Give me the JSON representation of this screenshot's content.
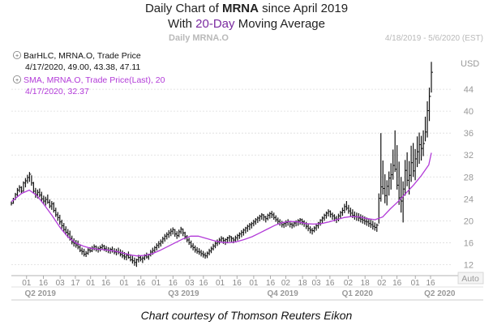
{
  "title": {
    "line1_pre": "Daily Chart of ",
    "line1_ticker": "MRNA",
    "line1_post": " since April 2019",
    "line2_pre": "With ",
    "line2_highlight": "20-Day",
    "line2_post": " Moving Average"
  },
  "header": {
    "chart_name": "Daily MRNA.O",
    "date_range": "4/18/2019 - 5/6/2020 (EST)"
  },
  "legend": {
    "row1": "BarHLC, MRNA.O, Trade Price",
    "row2": "4/17/2020, 49.00, 43.38, 47.11",
    "row3": "SMA, MRNA.O, Trade Price(Last),  20",
    "row4": "4/17/2020, 32.37"
  },
  "caption": "Chart courtesy of Thomson Reuters Eikon",
  "colors": {
    "bars": "#111111",
    "sma": "#b23ad8",
    "grid": "#dcdcdc",
    "highlight": "#7a2aa0"
  },
  "chart_data": {
    "type": "line",
    "currency": "USD",
    "axis_button": "Auto",
    "ylim": [
      10,
      52
    ],
    "y_ticks": [
      12,
      16,
      20,
      24,
      28,
      32,
      36,
      40,
      44
    ],
    "x_ticks": [
      {
        "label": "01",
        "t": 10
      },
      {
        "label": "16",
        "t": 21
      },
      {
        "label": "03",
        "t": 32
      },
      {
        "label": "17",
        "t": 42
      },
      {
        "label": "01",
        "t": 52
      },
      {
        "label": "16",
        "t": 62
      },
      {
        "label": "01",
        "t": 74
      },
      {
        "label": "16",
        "t": 85
      },
      {
        "label": "01",
        "t": 95
      },
      {
        "label": "16",
        "t": 106
      },
      {
        "label": "03",
        "t": 117
      },
      {
        "label": "16",
        "t": 126
      },
      {
        "label": "01",
        "t": 137
      },
      {
        "label": "16",
        "t": 148
      },
      {
        "label": "01",
        "t": 159
      },
      {
        "label": "16",
        "t": 170
      },
      {
        "label": "02",
        "t": 180
      },
      {
        "label": "18",
        "t": 191
      },
      {
        "label": "03",
        "t": 200
      },
      {
        "label": "16",
        "t": 209
      },
      {
        "label": "02",
        "t": 221
      },
      {
        "label": "18",
        "t": 232
      },
      {
        "label": "02",
        "t": 243
      },
      {
        "label": "16",
        "t": 253
      },
      {
        "label": "01",
        "t": 265
      },
      {
        "label": "16",
        "t": 275
      }
    ],
    "period_labels": [
      {
        "label": "Q2 2019",
        "t": 19
      },
      {
        "label": "Q3 2019",
        "t": 113
      },
      {
        "label": "Q4 2019",
        "t": 178
      },
      {
        "label": "Q1 2020",
        "t": 227
      },
      {
        "label": "Q2 2020",
        "t": 281
      }
    ],
    "bars": [
      [
        23.5,
        22.8,
        23.2
      ],
      [
        24.2,
        23.1,
        23.9
      ],
      [
        25.1,
        23.8,
        24.8
      ],
      [
        26.0,
        24.5,
        25.6
      ],
      [
        26.5,
        25.2,
        26.1
      ],
      [
        26.3,
        24.9,
        25.4
      ],
      [
        27.2,
        25.3,
        26.9
      ],
      [
        27.8,
        26.1,
        27.3
      ],
      [
        28.4,
        26.8,
        27.9
      ],
      [
        28.9,
        27.1,
        28.5
      ],
      [
        28.3,
        26.4,
        26.9
      ],
      [
        27.1,
        25.0,
        25.4
      ],
      [
        26.0,
        24.2,
        24.8
      ],
      [
        25.7,
        24.1,
        25.2
      ],
      [
        25.9,
        24.3,
        24.7
      ],
      [
        25.3,
        23.5,
        24.0
      ],
      [
        24.6,
        23.0,
        23.6
      ],
      [
        24.4,
        22.8,
        23.9
      ],
      [
        24.8,
        23.1,
        23.4
      ],
      [
        23.9,
        22.3,
        22.7
      ],
      [
        23.6,
        22.0,
        23.1
      ],
      [
        23.4,
        21.5,
        21.9
      ],
      [
        22.4,
        20.7,
        21.1
      ],
      [
        21.6,
        20.0,
        20.6
      ],
      [
        21.1,
        19.3,
        19.8
      ],
      [
        20.2,
        18.6,
        19.1
      ],
      [
        19.6,
        17.9,
        18.4
      ],
      [
        19.0,
        17.4,
        17.9
      ],
      [
        18.5,
        16.9,
        17.6
      ],
      [
        18.2,
        16.4,
        16.8
      ],
      [
        17.3,
        15.7,
        16.1
      ],
      [
        16.8,
        15.3,
        15.9
      ],
      [
        16.5,
        15.1,
        15.6
      ],
      [
        16.4,
        14.8,
        15.2
      ],
      [
        15.7,
        14.3,
        14.6
      ],
      [
        15.1,
        13.8,
        14.4
      ],
      [
        14.9,
        13.5,
        13.9
      ],
      [
        14.5,
        13.4,
        14.1
      ],
      [
        15.0,
        13.8,
        14.7
      ],
      [
        15.2,
        14.2,
        14.5
      ],
      [
        15.4,
        14.3,
        15.0
      ],
      [
        15.7,
        14.6,
        15.3
      ],
      [
        15.5,
        14.4,
        14.8
      ],
      [
        15.3,
        14.2,
        14.9
      ],
      [
        15.5,
        14.4,
        15.1
      ],
      [
        15.8,
        14.7,
        15.4
      ],
      [
        15.6,
        14.5,
        14.9
      ],
      [
        15.4,
        14.3,
        14.7
      ],
      [
        15.2,
        14.1,
        14.6
      ],
      [
        15.1,
        14.0,
        14.8
      ],
      [
        15.3,
        14.2,
        14.5
      ],
      [
        15.0,
        13.9,
        14.3
      ],
      [
        14.9,
        13.7,
        14.4
      ],
      [
        15.1,
        13.9,
        14.2
      ],
      [
        14.8,
        13.5,
        13.9
      ],
      [
        14.6,
        13.2,
        13.6
      ],
      [
        14.3,
        12.9,
        13.4
      ],
      [
        14.1,
        12.8,
        13.7
      ],
      [
        14.4,
        13.1,
        13.3
      ],
      [
        13.9,
        12.6,
        12.9
      ],
      [
        13.6,
        12.2,
        12.7
      ],
      [
        13.3,
        11.8,
        12.4
      ],
      [
        13.1,
        11.6,
        12.9
      ],
      [
        13.8,
        12.4,
        13.3
      ],
      [
        13.7,
        12.6,
        13.0
      ],
      [
        13.5,
        12.3,
        13.2
      ],
      [
        13.9,
        12.8,
        13.6
      ],
      [
        14.2,
        13.1,
        13.4
      ],
      [
        14.0,
        12.9,
        13.8
      ],
      [
        14.7,
        13.5,
        14.3
      ],
      [
        15.1,
        13.8,
        14.6
      ],
      [
        15.4,
        14.2,
        15.1
      ],
      [
        15.9,
        14.6,
        15.5
      ],
      [
        16.3,
        15.0,
        15.8
      ],
      [
        16.6,
        15.3,
        16.2
      ],
      [
        17.1,
        15.8,
        16.7
      ],
      [
        17.6,
        16.2,
        17.2
      ],
      [
        17.9,
        16.6,
        17.5
      ],
      [
        18.3,
        16.9,
        17.8
      ],
      [
        18.6,
        17.2,
        18.1
      ],
      [
        18.8,
        17.5,
        18.4
      ],
      [
        18.5,
        17.1,
        17.6
      ],
      [
        18.1,
        16.7,
        17.3
      ],
      [
        18.4,
        17.0,
        18.0
      ],
      [
        18.9,
        17.6,
        18.5
      ],
      [
        18.6,
        17.2,
        17.8
      ],
      [
        18.0,
        16.6,
        17.1
      ],
      [
        17.4,
        16.1,
        16.5
      ],
      [
        16.9,
        15.6,
        16.0
      ],
      [
        16.4,
        15.0,
        15.4
      ],
      [
        15.9,
        14.6,
        15.1
      ],
      [
        15.5,
        14.2,
        14.7
      ],
      [
        15.2,
        14.0,
        14.4
      ],
      [
        15.0,
        13.8,
        14.3
      ],
      [
        14.7,
        13.5,
        14.0
      ],
      [
        14.5,
        13.3,
        13.8
      ],
      [
        14.2,
        13.1,
        13.6
      ],
      [
        14.4,
        13.2,
        14.1
      ],
      [
        14.9,
        13.7,
        14.5
      ],
      [
        15.3,
        14.1,
        14.9
      ],
      [
        15.8,
        14.6,
        15.4
      ],
      [
        16.2,
        15.0,
        15.9
      ],
      [
        16.6,
        15.4,
        16.1
      ],
      [
        16.9,
        15.7,
        16.5
      ],
      [
        17.2,
        16.0,
        16.8
      ],
      [
        17.0,
        15.8,
        16.4
      ],
      [
        16.8,
        15.6,
        16.6
      ],
      [
        17.1,
        15.9,
        16.9
      ],
      [
        17.4,
        16.2,
        17.1
      ],
      [
        17.2,
        16.1,
        16.8
      ],
      [
        17.0,
        15.9,
        16.5
      ],
      [
        17.3,
        16.1,
        16.9
      ],
      [
        17.6,
        16.4,
        17.3
      ],
      [
        17.9,
        16.7,
        17.6
      ],
      [
        18.3,
        17.0,
        17.9
      ],
      [
        18.6,
        17.3,
        18.3
      ],
      [
        18.9,
        17.7,
        18.7
      ],
      [
        19.3,
        18.0,
        19.0
      ],
      [
        19.6,
        18.3,
        19.3
      ],
      [
        19.8,
        18.6,
        19.5
      ],
      [
        20.2,
        19.0,
        19.8
      ],
      [
        20.5,
        19.3,
        20.2
      ],
      [
        20.8,
        19.6,
        20.5
      ],
      [
        21.1,
        19.9,
        20.8
      ],
      [
        21.4,
        20.2,
        21.1
      ],
      [
        21.2,
        20.0,
        20.7
      ],
      [
        20.9,
        19.7,
        20.4
      ],
      [
        21.3,
        20.1,
        21.0
      ],
      [
        21.6,
        20.4,
        21.3
      ],
      [
        21.8,
        20.5,
        21.1
      ],
      [
        21.5,
        20.2,
        20.6
      ],
      [
        21.0,
        19.8,
        20.2
      ],
      [
        20.6,
        19.4,
        19.9
      ],
      [
        20.3,
        19.1,
        19.6
      ],
      [
        20.0,
        18.8,
        19.3
      ],
      [
        19.8,
        18.7,
        19.5
      ],
      [
        20.1,
        18.9,
        19.7
      ],
      [
        20.3,
        19.1,
        19.9
      ],
      [
        20.0,
        18.8,
        19.4
      ],
      [
        19.7,
        18.6,
        19.2
      ],
      [
        19.9,
        18.8,
        19.6
      ],
      [
        20.1,
        19.0,
        19.8
      ],
      [
        20.3,
        19.1,
        20.0
      ],
      [
        20.5,
        19.3,
        20.2
      ],
      [
        20.4,
        19.2,
        19.8
      ],
      [
        20.1,
        18.9,
        19.5
      ],
      [
        19.8,
        18.5,
        19.0
      ],
      [
        19.4,
        18.1,
        18.6
      ],
      [
        19.0,
        17.7,
        18.3
      ],
      [
        18.7,
        17.5,
        18.2
      ],
      [
        19.0,
        17.9,
        18.7
      ],
      [
        19.4,
        18.2,
        19.1
      ],
      [
        19.8,
        18.6,
        19.6
      ],
      [
        20.3,
        19.1,
        20.1
      ],
      [
        20.8,
        19.5,
        20.5
      ],
      [
        21.3,
        20.0,
        21.0
      ],
      [
        21.7,
        20.4,
        21.4
      ],
      [
        22.1,
        20.8,
        21.7
      ],
      [
        21.9,
        20.6,
        21.2
      ],
      [
        21.5,
        20.2,
        20.9
      ],
      [
        21.2,
        19.9,
        20.5
      ],
      [
        20.9,
        19.6,
        20.3
      ],
      [
        21.3,
        19.9,
        20.9
      ],
      [
        21.8,
        20.4,
        21.5
      ],
      [
        22.4,
        20.9,
        21.9
      ],
      [
        23.1,
        21.4,
        22.6
      ],
      [
        23.6,
        21.9,
        22.3
      ],
      [
        22.9,
        21.3,
        21.8
      ],
      [
        22.4,
        20.8,
        21.4
      ],
      [
        22.1,
        20.5,
        21.0
      ],
      [
        21.7,
        20.2,
        20.8
      ],
      [
        21.5,
        20.0,
        20.7
      ],
      [
        21.4,
        19.9,
        20.5
      ],
      [
        21.2,
        19.7,
        20.3
      ],
      [
        21.0,
        19.5,
        20.1
      ],
      [
        20.8,
        19.3,
        19.9
      ],
      [
        20.6,
        19.1,
        19.8
      ],
      [
        20.4,
        18.9,
        19.5
      ],
      [
        20.2,
        18.7,
        19.3
      ],
      [
        20.0,
        18.4,
        19.0
      ],
      [
        19.7,
        18.2,
        18.8
      ],
      [
        19.5,
        18.0,
        19.2
      ],
      [
        25.0,
        19.5,
        24.1
      ],
      [
        36.0,
        23.5,
        26.2
      ],
      [
        31.0,
        24.8,
        25.9
      ],
      [
        28.5,
        23.2,
        24.6
      ],
      [
        27.4,
        22.8,
        26.3
      ],
      [
        29.0,
        24.6,
        27.8
      ],
      [
        30.5,
        25.7,
        28.4
      ],
      [
        33.0,
        27.5,
        30.1
      ],
      [
        36.5,
        28.9,
        29.4
      ],
      [
        33.8,
        25.7,
        26.5
      ],
      [
        30.8,
        22.9,
        24.2
      ],
      [
        28.0,
        21.5,
        23.6
      ],
      [
        27.2,
        19.7,
        25.8
      ],
      [
        31.1,
        24.6,
        29.2
      ],
      [
        32.5,
        26.3,
        27.4
      ],
      [
        30.9,
        24.8,
        28.3
      ],
      [
        33.7,
        27.1,
        30.6
      ],
      [
        34.2,
        28.0,
        29.1
      ],
      [
        33.1,
        27.4,
        31.3
      ],
      [
        35.4,
        29.8,
        32.6
      ],
      [
        36.1,
        30.4,
        33.9
      ],
      [
        35.5,
        31.0,
        33.2
      ],
      [
        36.5,
        31.8,
        34.1
      ],
      [
        39.0,
        34.5,
        36.2
      ],
      [
        41.8,
        35.2,
        40.1
      ],
      [
        44.3,
        38.2,
        42.7
      ],
      [
        49.0,
        43.4,
        47.1
      ]
    ],
    "sma": [
      [
        0,
        23.5
      ],
      [
        8,
        25.0
      ],
      [
        14,
        25.6
      ],
      [
        20,
        24.6
      ],
      [
        26,
        22.8
      ],
      [
        32,
        20.9
      ],
      [
        38,
        18.8
      ],
      [
        44,
        17.1
      ],
      [
        50,
        16.0
      ],
      [
        56,
        15.4
      ],
      [
        62,
        15.0
      ],
      [
        68,
        14.8
      ],
      [
        74,
        14.7
      ],
      [
        80,
        14.5
      ],
      [
        86,
        14.2
      ],
      [
        92,
        13.8
      ],
      [
        98,
        13.6
      ],
      [
        104,
        13.7
      ],
      [
        110,
        14.0
      ],
      [
        116,
        14.6
      ],
      [
        122,
        15.3
      ],
      [
        128,
        16.0
      ],
      [
        134,
        16.7
      ],
      [
        140,
        17.2
      ],
      [
        146,
        17.2
      ],
      [
        152,
        16.8
      ],
      [
        158,
        16.4
      ],
      [
        164,
        16.1
      ],
      [
        170,
        16.0
      ],
      [
        176,
        16.2
      ],
      [
        182,
        16.6
      ],
      [
        188,
        17.1
      ],
      [
        194,
        17.8
      ],
      [
        200,
        18.5
      ],
      [
        206,
        19.2
      ],
      [
        212,
        19.7
      ],
      [
        218,
        19.9
      ],
      [
        224,
        19.8
      ],
      [
        230,
        19.5
      ],
      [
        236,
        19.4
      ],
      [
        242,
        19.5
      ],
      [
        248,
        19.8
      ],
      [
        254,
        20.2
      ],
      [
        260,
        20.6
      ],
      [
        266,
        20.8
      ],
      [
        272,
        20.7
      ],
      [
        278,
        20.4
      ],
      [
        284,
        20.2
      ],
      [
        290,
        20.7
      ],
      [
        296,
        22.2
      ],
      [
        302,
        23.5
      ],
      [
        308,
        25.0
      ],
      [
        314,
        26.5
      ],
      [
        320,
        28.2
      ],
      [
        326,
        30.2
      ],
      [
        328,
        32.4
      ]
    ]
  }
}
